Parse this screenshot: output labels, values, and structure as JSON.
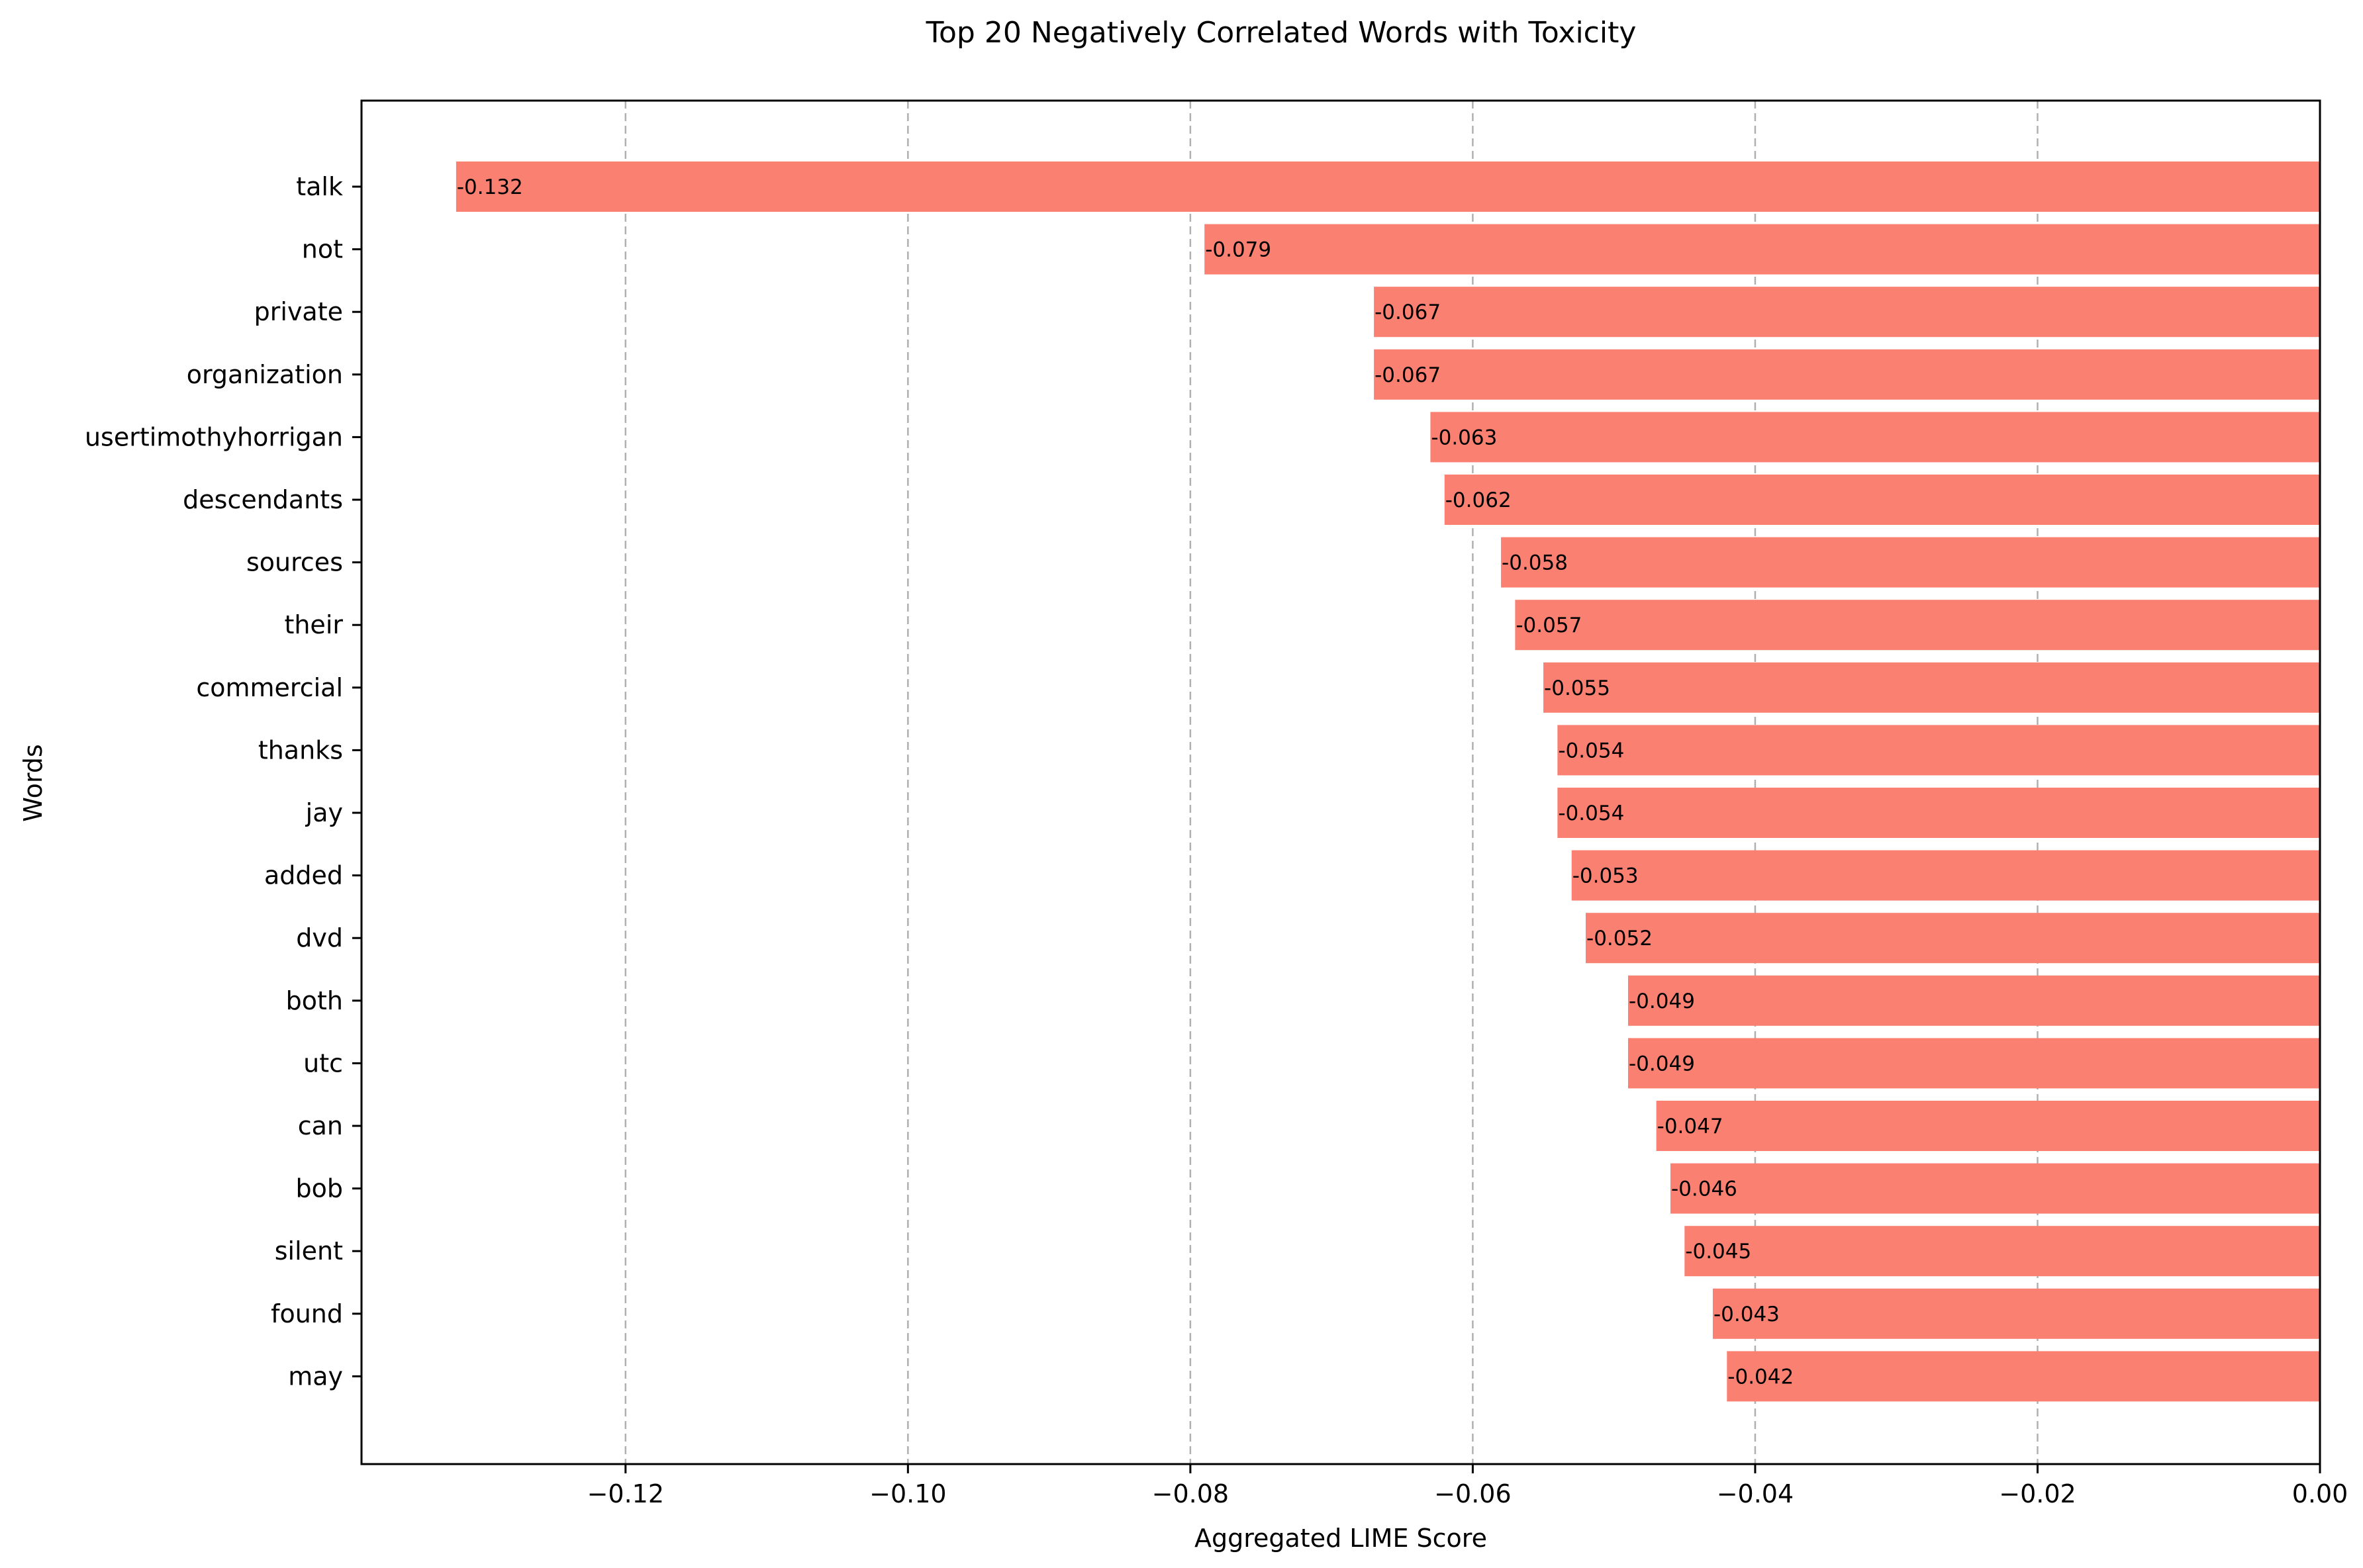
{
  "chart_data": {
    "type": "bar",
    "orientation": "horizontal",
    "title": "Top 20 Negatively Correlated Words with Toxicity",
    "xlabel": "Aggregated LIME Score",
    "ylabel": "Words",
    "xlim": [
      -0.1387,
      0.0
    ],
    "xticks": [
      -0.12,
      -0.1,
      -0.08,
      -0.06,
      -0.04,
      -0.02,
      0.0
    ],
    "xtick_labels": [
      "−0.12",
      "−0.10",
      "−0.08",
      "−0.06",
      "−0.04",
      "−0.02",
      "0.00"
    ],
    "grid": "x-dashed",
    "bar_color": "#fa8072",
    "categories": [
      "talk",
      "not",
      "private",
      "organization",
      "usertimothyhorrigan",
      "descendants",
      "sources",
      "their",
      "commercial",
      "thanks",
      "jay",
      "added",
      "dvd",
      "both",
      "utc",
      "can",
      "bob",
      "silent",
      "found",
      "may"
    ],
    "values": [
      -0.132,
      -0.079,
      -0.067,
      -0.067,
      -0.063,
      -0.062,
      -0.058,
      -0.057,
      -0.055,
      -0.054,
      -0.054,
      -0.053,
      -0.052,
      -0.049,
      -0.049,
      -0.047,
      -0.046,
      -0.045,
      -0.043,
      -0.042
    ],
    "data_labels": [
      "-0.132",
      "-0.079",
      "-0.067",
      "-0.067",
      "-0.063",
      "-0.062",
      "-0.058",
      "-0.057",
      "-0.055",
      "-0.054",
      "-0.054",
      "-0.053",
      "-0.052",
      "-0.049",
      "-0.049",
      "-0.047",
      "-0.046",
      "-0.045",
      "-0.043",
      "-0.042"
    ]
  }
}
